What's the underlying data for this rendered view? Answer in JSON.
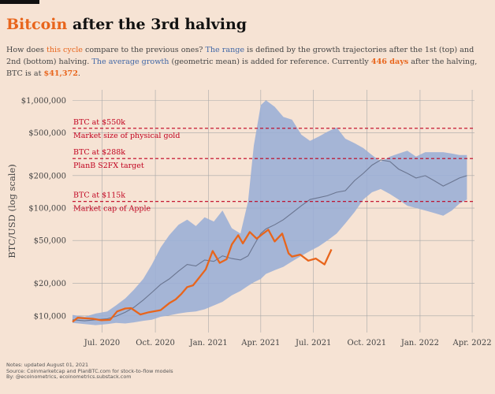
{
  "title": {
    "accent": "Bitcoin",
    "rest": " after the 3rd halving"
  },
  "subtitle": {
    "p1": "How does ",
    "this_cycle": "this cycle",
    "p2": " compare to the previous ones? ",
    "the_range": "The range",
    "p3": " is defined by the growth trajectories after the 1st (top) and 2nd (bottom) halving. ",
    "average": "The average growth",
    "p4": " (geometric mean) is added for reference. Currently ",
    "days": "446 days",
    "p5": " after the halving, BTC is at ",
    "price": "$41,372",
    "p6": "."
  },
  "notes": {
    "line1": "Notes: updated August 01, 2021",
    "line2": "Source: Coinmarketcap and PlanBTC.com for stock-to-flow models",
    "line3": "By: @ecoinometrics, ecoinometrics.substack.com"
  },
  "colors": {
    "background": "#f6e3d4",
    "accent_orange": "#e8651c",
    "range_band": "#9aaed6",
    "average_line": "#6a7590",
    "reference_red": "#c0001e",
    "grid": "#a8a8a8"
  },
  "chart_data": {
    "type": "line",
    "title": "Bitcoin after the 3rd halving",
    "ylabel": "BTC/USD (log scale)",
    "yscale": "log",
    "ylim": [
      7000,
      1250000
    ],
    "xlim": [
      "2020-05-11",
      "2022-04-05"
    ],
    "yticks": [
      {
        "value": 10000,
        "label": "$10,000"
      },
      {
        "value": 20000,
        "label": "$20,000"
      },
      {
        "value": 50000,
        "label": "$50,000"
      },
      {
        "value": 100000,
        "label": "$100,000"
      },
      {
        "value": 200000,
        "label": "$200,000"
      },
      {
        "value": 500000,
        "label": "$500,000"
      },
      {
        "value": 1000000,
        "label": "$1,000,000"
      }
    ],
    "xticks": [
      {
        "date": "2020-07-01",
        "label": "Jul. 2020"
      },
      {
        "date": "2020-10-01",
        "label": "Oct. 2020"
      },
      {
        "date": "2021-01-01",
        "label": "Jan. 2021"
      },
      {
        "date": "2021-04-01",
        "label": "Apr. 2021"
      },
      {
        "date": "2021-07-01",
        "label": "Jul. 2021"
      },
      {
        "date": "2021-10-01",
        "label": "Oct. 2021"
      },
      {
        "date": "2022-01-01",
        "label": "Jan. 2022"
      },
      {
        "date": "2022-04-01",
        "label": "Apr. 2022"
      }
    ],
    "reference_lines": [
      {
        "value": 550000,
        "label_top": "BTC at $550k",
        "label_bottom": "Market size of physical gold"
      },
      {
        "value": 288000,
        "label_top": "BTC at $288k",
        "label_bottom": "PlanB S2FX target"
      },
      {
        "value": 115000,
        "label_top": "BTC at $115k",
        "label_bottom": "Market cap of Apple"
      }
    ],
    "range_band": {
      "name": "The range",
      "dates": [
        "2020-05-11",
        "2020-06-01",
        "2020-06-20",
        "2020-07-10",
        "2020-07-25",
        "2020-08-10",
        "2020-08-25",
        "2020-09-10",
        "2020-09-25",
        "2020-10-10",
        "2020-10-25",
        "2020-11-10",
        "2020-11-25",
        "2020-12-10",
        "2020-12-25",
        "2021-01-10",
        "2021-01-25",
        "2021-02-10",
        "2021-02-25",
        "2021-03-10",
        "2021-03-20",
        "2021-04-01",
        "2021-04-10",
        "2021-04-25",
        "2021-05-10",
        "2021-05-25",
        "2021-06-10",
        "2021-06-25",
        "2021-07-10",
        "2021-07-25",
        "2021-08-10",
        "2021-08-25",
        "2021-09-10",
        "2021-09-25",
        "2021-10-10",
        "2021-10-25",
        "2021-11-10",
        "2021-11-25",
        "2021-12-10",
        "2021-12-25",
        "2022-01-10",
        "2022-01-25",
        "2022-02-10",
        "2022-02-25",
        "2022-03-10",
        "2022-03-23"
      ],
      "upper": [
        10200,
        9800,
        10500,
        11000,
        12500,
        14500,
        17500,
        22000,
        30000,
        43000,
        56000,
        70000,
        78000,
        68000,
        82000,
        75000,
        95000,
        65000,
        58000,
        115000,
        380000,
        900000,
        1000000,
        870000,
        700000,
        660000,
        480000,
        420000,
        460000,
        510000,
        560000,
        440000,
        400000,
        360000,
        310000,
        270000,
        300000,
        320000,
        340000,
        300000,
        330000,
        330000,
        330000,
        320000,
        310000,
        310000
      ],
      "lower": [
        8600,
        8400,
        8200,
        8400,
        8600,
        8500,
        8700,
        9000,
        9200,
        9800,
        10100,
        10500,
        10800,
        11000,
        11500,
        12500,
        13500,
        15500,
        17000,
        19000,
        20500,
        22000,
        24500,
        26500,
        28500,
        32000,
        36000,
        40000,
        44000,
        50000,
        58000,
        72000,
        92000,
        120000,
        140000,
        150000,
        135000,
        120000,
        105000,
        100000,
        95000,
        90000,
        85000,
        95000,
        110000,
        120000
      ]
    },
    "series": [
      {
        "name": "The average growth",
        "dates": [
          "2020-05-11",
          "2020-06-01",
          "2020-06-20",
          "2020-07-10",
          "2020-07-25",
          "2020-08-10",
          "2020-08-25",
          "2020-09-10",
          "2020-09-25",
          "2020-10-10",
          "2020-10-25",
          "2020-11-10",
          "2020-11-25",
          "2020-12-10",
          "2020-12-25",
          "2021-01-10",
          "2021-01-25",
          "2021-02-10",
          "2021-02-25",
          "2021-03-10",
          "2021-03-20",
          "2021-04-01",
          "2021-04-10",
          "2021-04-25",
          "2021-05-10",
          "2021-05-25",
          "2021-06-10",
          "2021-06-25",
          "2021-07-10",
          "2021-07-25",
          "2021-08-10",
          "2021-08-25",
          "2021-09-10",
          "2021-09-25",
          "2021-10-10",
          "2021-10-25",
          "2021-11-10",
          "2021-11-25",
          "2021-12-10",
          "2021-12-25",
          "2022-01-10",
          "2022-01-25",
          "2022-02-10",
          "2022-02-25",
          "2022-03-10",
          "2022-03-23"
        ],
        "values": [
          9200,
          9000,
          9200,
          9400,
          9900,
          10800,
          12000,
          14000,
          16500,
          19500,
          22000,
          26000,
          30000,
          29000,
          33000,
          32000,
          36000,
          34000,
          33000,
          36000,
          45000,
          58000,
          64000,
          70000,
          78000,
          90000,
          105000,
          120000,
          125000,
          130000,
          140000,
          145000,
          180000,
          210000,
          250000,
          280000,
          270000,
          230000,
          210000,
          190000,
          200000,
          180000,
          160000,
          175000,
          190000,
          200000
        ]
      },
      {
        "name": "this cycle",
        "dates": [
          "2020-05-11",
          "2020-05-20",
          "2020-06-01",
          "2020-06-15",
          "2020-06-30",
          "2020-07-15",
          "2020-07-27",
          "2020-08-10",
          "2020-08-20",
          "2020-09-05",
          "2020-09-20",
          "2020-10-10",
          "2020-10-25",
          "2020-11-05",
          "2020-11-15",
          "2020-11-25",
          "2020-12-05",
          "2020-12-16",
          "2020-12-27",
          "2021-01-08",
          "2021-01-20",
          "2021-02-01",
          "2021-02-10",
          "2021-02-21",
          "2021-03-01",
          "2021-03-13",
          "2021-03-25",
          "2021-04-05",
          "2021-04-14",
          "2021-04-25",
          "2021-05-08",
          "2021-05-19",
          "2021-05-25",
          "2021-06-08",
          "2021-06-22",
          "2021-07-05",
          "2021-07-20",
          "2021-08-01"
        ],
        "values": [
          8800,
          9600,
          9500,
          9400,
          9100,
          9200,
          11000,
          11700,
          11800,
          10300,
          10800,
          11300,
          13100,
          14200,
          16000,
          18500,
          19200,
          22700,
          27000,
          40000,
          31000,
          33500,
          46000,
          56000,
          47000,
          60000,
          52000,
          58000,
          63000,
          49000,
          58000,
          38000,
          35500,
          37000,
          32500,
          34000,
          30000,
          41372
        ]
      }
    ]
  }
}
